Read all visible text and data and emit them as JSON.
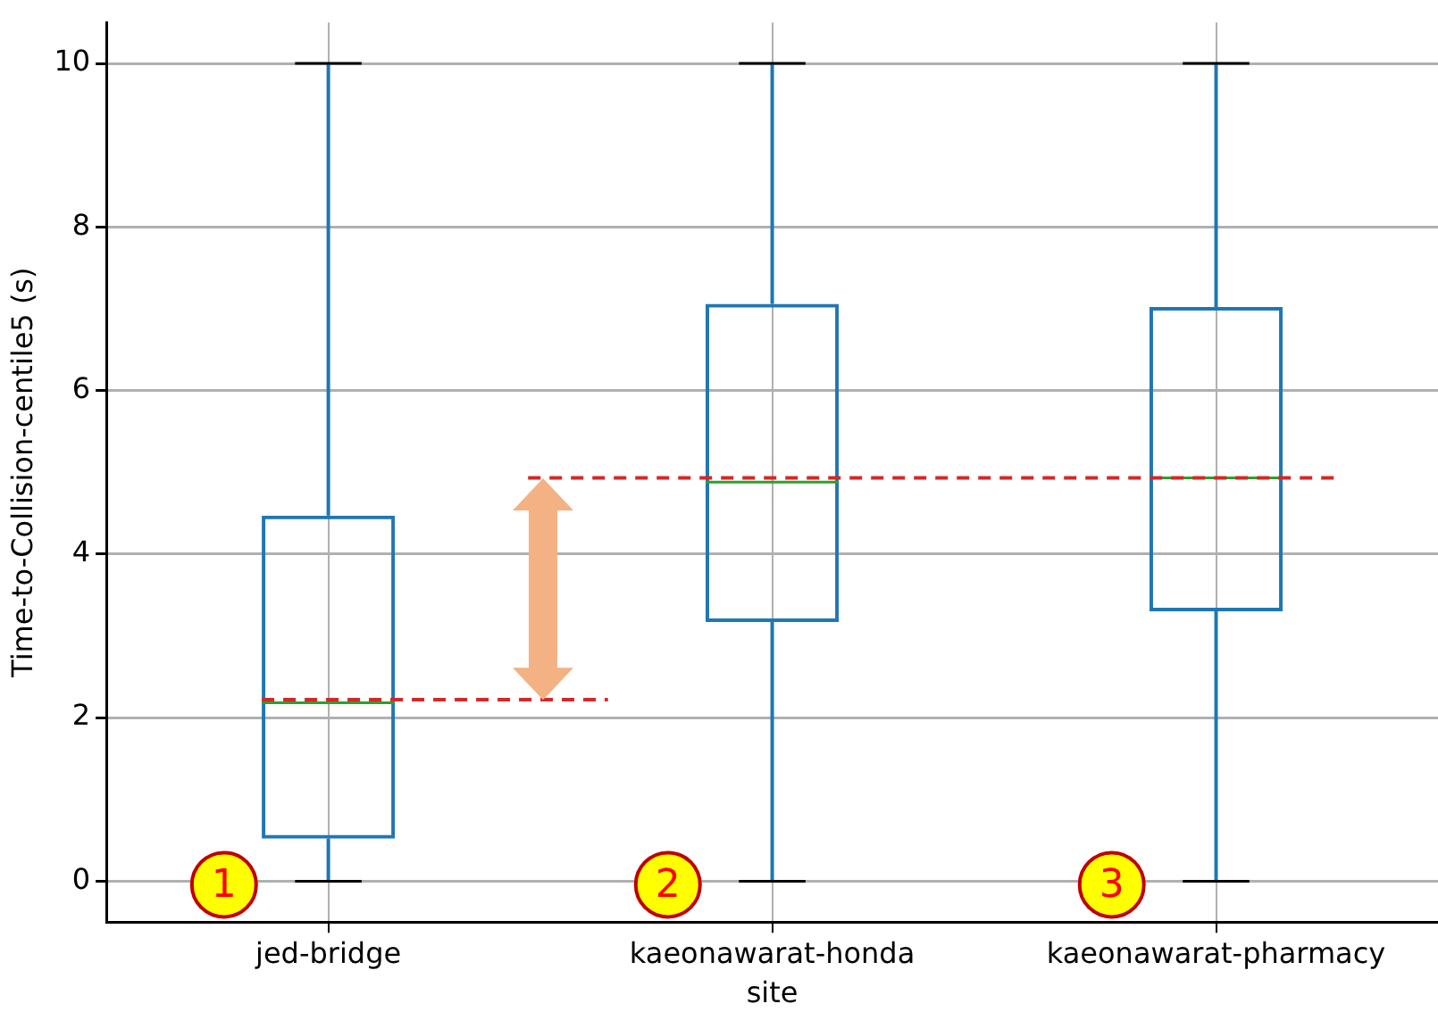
{
  "chart_data": {
    "type": "box",
    "xlabel": "site",
    "ylabel": "Time-to-Collision-centile5 (s)",
    "categories": [
      "jed-bridge",
      "kaeonawarat-honda",
      "kaeonawarat-pharmacy"
    ],
    "color": "#1f77b4",
    "boxes": [
      {
        "low": 0,
        "q1": 0.52,
        "median": 2.18,
        "q3": 4.47,
        "high": 10
      },
      {
        "low": 0,
        "q1": 3.17,
        "median": 4.88,
        "q3": 7.06,
        "high": 10
      },
      {
        "low": 0,
        "q1": 3.3,
        "median": 4.93,
        "q3": 7.02,
        "high": 10
      }
    ],
    "ylim": [
      -0.5,
      10.5
    ],
    "yticks": [
      0,
      2,
      4,
      6,
      8,
      10
    ],
    "grid": true,
    "ref_lines": [
      {
        "axis": "y",
        "value": 2.22,
        "color": "#d62728",
        "line_style": "dashed"
      },
      {
        "axis": "y",
        "value": 4.93,
        "color": "#d62728",
        "line_style": "dashed"
      }
    ],
    "annotations": [
      "1",
      "2",
      "3"
    ]
  }
}
